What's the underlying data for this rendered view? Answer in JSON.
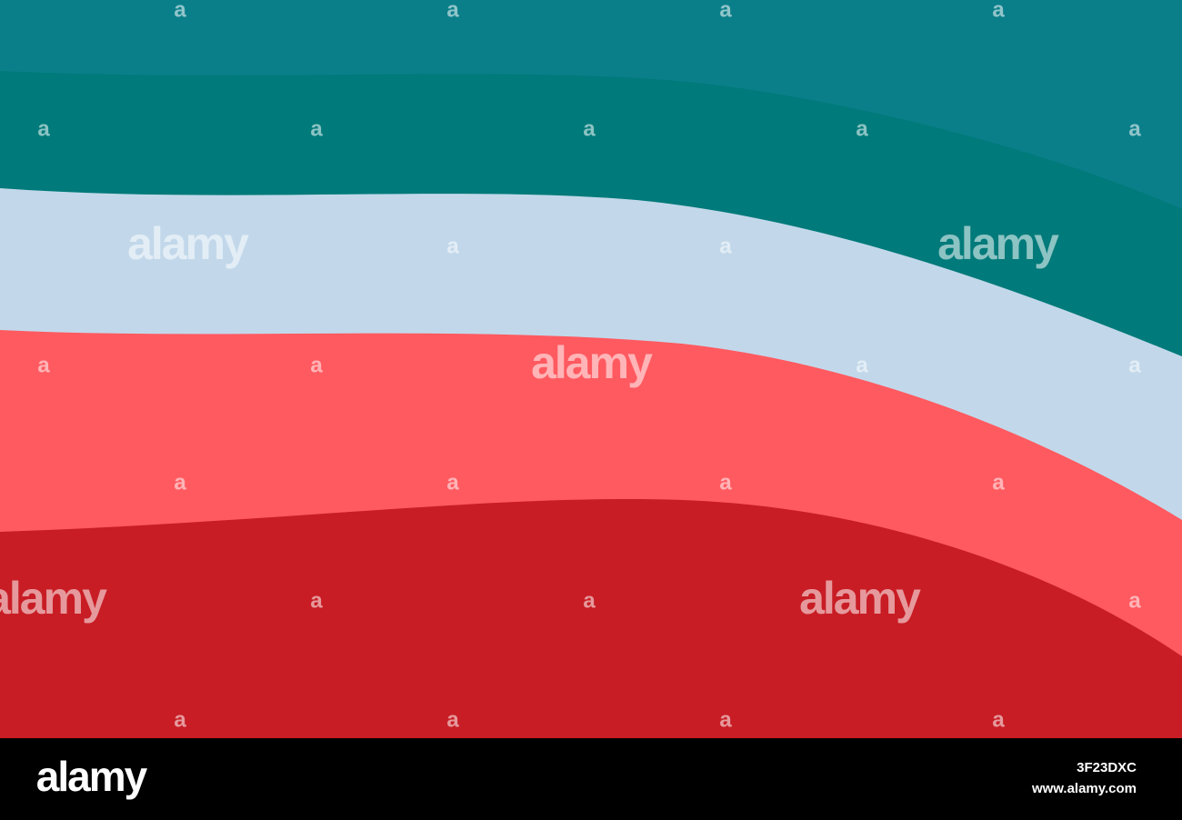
{
  "watermark_marks": [
    "a",
    "a",
    "a",
    "a",
    "a",
    "a",
    "a",
    "a",
    "a",
    "a",
    "a",
    "a",
    "a",
    "a",
    "a",
    "a",
    "a",
    "a",
    "a",
    "a",
    "a",
    "a",
    "a",
    "a",
    "a",
    "a"
  ],
  "watermark_logos": [
    "alamy",
    "alamy",
    "alamy",
    "alamy",
    "alamy"
  ],
  "footer": {
    "logo": "alamy",
    "image_id": "3F23DXC",
    "url": "www.alamy.com"
  }
}
